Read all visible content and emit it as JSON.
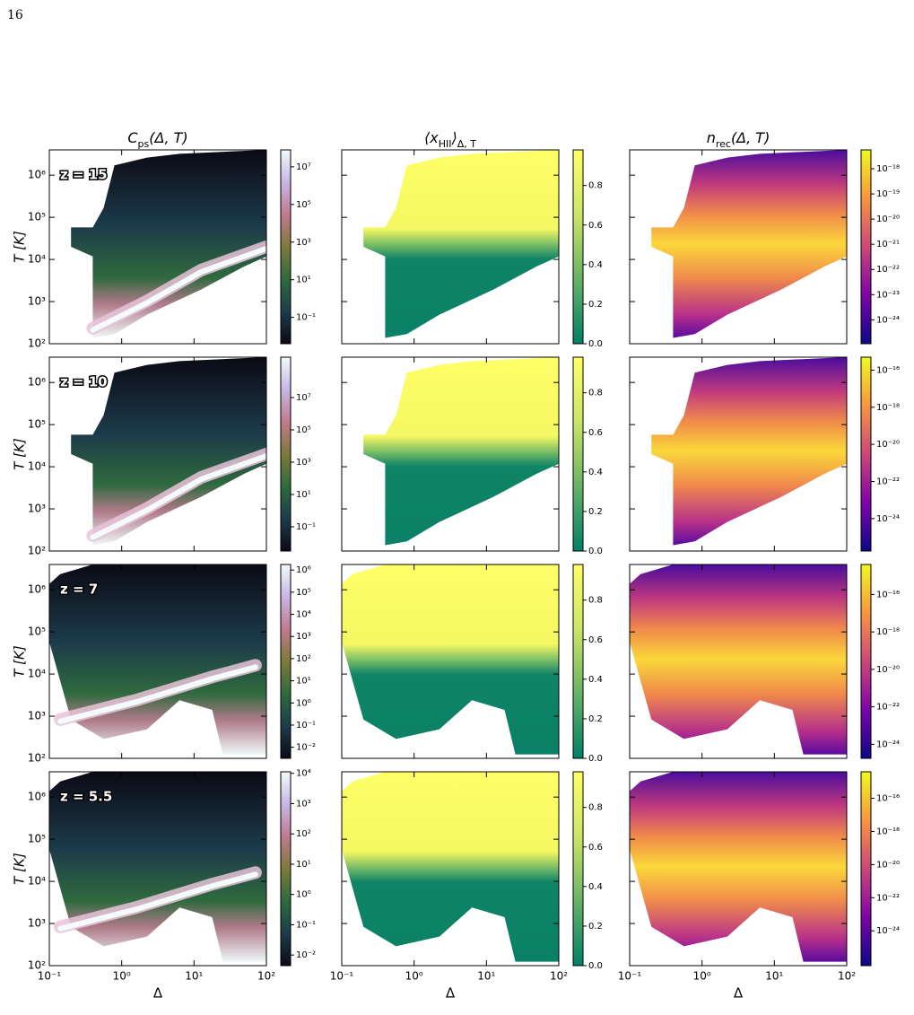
{
  "page_number": "16",
  "x_axis": {
    "label": "Δ",
    "lim": [
      -1,
      2
    ],
    "ticks": [
      {
        "value": -1,
        "label": "10⁻¹"
      },
      {
        "value": 0,
        "label": "10⁰"
      },
      {
        "value": 1,
        "label": "10¹"
      },
      {
        "value": 2,
        "label": "10²"
      }
    ]
  },
  "y_axis": {
    "label": "T [K]",
    "lim": [
      2,
      6.6
    ],
    "ticks": [
      {
        "value": 2,
        "label": "10²"
      },
      {
        "value": 3,
        "label": "10³"
      },
      {
        "value": 4,
        "label": "10⁴"
      },
      {
        "value": 5,
        "label": "10⁵"
      },
      {
        "value": 6,
        "label": "10⁶"
      }
    ]
  },
  "columns": [
    {
      "title": [
        {
          "text": "C"
        },
        {
          "text": "ps",
          "sub": true
        },
        {
          "text": "(Δ, T)"
        }
      ],
      "colors": [
        "#0b0a14",
        "#1d3c4c",
        "#2f6a3e",
        "#7d7a3a",
        "#c27a8f",
        "#c7b6e6",
        "#f2fbfb"
      ]
    },
    {
      "title": [
        {
          "text": "⟨x"
        },
        {
          "text": "HII",
          "sub": true
        },
        {
          "text": "⟩"
        },
        {
          "text": "Δ, T",
          "sub": true
        }
      ],
      "colors": [
        "#008066",
        "#66b266",
        "#ccE566",
        "#ffff66"
      ]
    },
    {
      "title": [
        {
          "text": "n"
        },
        {
          "text": "rec",
          "sub": true
        },
        {
          "text": "(Δ, T)"
        }
      ],
      "colors": [
        "#0d0887",
        "#7e03a8",
        "#cc4778",
        "#f89540",
        "#f0f921"
      ]
    }
  ],
  "rows": [
    {
      "label": "z = 15",
      "colorbars": [
        {
          "lim": [
            -2.4,
            7.9
          ],
          "ticks": [
            {
              "value": 7,
              "label": "10⁷"
            },
            {
              "value": 5,
              "label": "10⁵"
            },
            {
              "value": 3,
              "label": "10³"
            },
            {
              "value": 1,
              "label": "10¹"
            },
            {
              "value": -1,
              "label": "10⁻¹"
            }
          ]
        },
        {
          "lim": [
            0,
            0.98
          ],
          "ticks": [
            0.8,
            0.6,
            0.4,
            0.2,
            {
              "value": 0,
              "label": "0.0"
            }
          ]
        },
        {
          "lim": [
            -24.95,
            -17.25
          ],
          "ticks": [
            {
              "value": -18,
              "label": "10⁻¹⁸"
            },
            {
              "value": -19,
              "label": "10⁻¹⁹"
            },
            {
              "value": -20,
              "label": "10⁻²⁰"
            },
            {
              "value": -21,
              "label": "10⁻²¹"
            },
            {
              "value": -22,
              "label": "10⁻²²"
            },
            {
              "value": -23,
              "label": "10⁻²³"
            },
            {
              "value": -24,
              "label": "10⁻²⁴"
            }
          ]
        }
      ]
    },
    {
      "label": "z = 10",
      "colorbars": [
        {
          "lim": [
            -2.5,
            9.5
          ],
          "ticks": [
            {
              "value": 7,
              "label": "10⁷"
            },
            {
              "value": 5,
              "label": "10⁵"
            },
            {
              "value": 3,
              "label": "10³"
            },
            {
              "value": 1,
              "label": "10¹"
            },
            {
              "value": -1,
              "label": "10⁻¹"
            }
          ]
        },
        {
          "lim": [
            0,
            0.98
          ],
          "ticks": [
            0.8,
            0.6,
            0.4,
            0.2,
            {
              "value": 0,
              "label": "0.0"
            }
          ]
        },
        {
          "lim": [
            -25.75,
            -15.3
          ],
          "ticks": [
            {
              "value": -16,
              "label": "10⁻¹⁶"
            },
            {
              "value": -18,
              "label": "10⁻¹⁸"
            },
            {
              "value": -20,
              "label": "10⁻²⁰"
            },
            {
              "value": -22,
              "label": "10⁻²²"
            },
            {
              "value": -24,
              "label": "10⁻²⁴"
            }
          ]
        }
      ]
    },
    {
      "label": "z = 7",
      "colorbars": [
        {
          "lim": [
            -2.5,
            6.25
          ],
          "ticks": [
            {
              "value": 6,
              "label": "10⁶"
            },
            {
              "value": 5,
              "label": "10⁵"
            },
            {
              "value": 4,
              "label": "10⁴"
            },
            {
              "value": 3,
              "label": "10³"
            },
            {
              "value": 2,
              "label": "10²"
            },
            {
              "value": 1,
              "label": "10¹"
            },
            {
              "value": 0,
              "label": "10⁰"
            },
            {
              "value": -1,
              "label": "10⁻¹"
            },
            {
              "value": -2,
              "label": "10⁻²"
            }
          ]
        },
        {
          "lim": [
            0,
            0.98
          ],
          "ticks": [
            0.8,
            0.6,
            0.4,
            0.2,
            {
              "value": 0,
              "label": "0.0"
            }
          ]
        },
        {
          "lim": [
            -24.75,
            -14.4
          ],
          "ticks": [
            {
              "value": -16,
              "label": "10⁻¹⁶"
            },
            {
              "value": -18,
              "label": "10⁻¹⁸"
            },
            {
              "value": -20,
              "label": "10⁻²⁰"
            },
            {
              "value": -22,
              "label": "10⁻²²"
            },
            {
              "value": -24,
              "label": "10⁻²⁴"
            }
          ]
        }
      ]
    },
    {
      "label": "z = 5.5",
      "colorbars": [
        {
          "lim": [
            -2.35,
            4.05
          ],
          "ticks": [
            {
              "value": 4,
              "label": "10⁴"
            },
            {
              "value": 3,
              "label": "10³"
            },
            {
              "value": 2,
              "label": "10²"
            },
            {
              "value": 1,
              "label": "10¹"
            },
            {
              "value": 0,
              "label": "10⁰"
            },
            {
              "value": -1,
              "label": "10⁻¹"
            },
            {
              "value": -2,
              "label": "10⁻²"
            }
          ]
        },
        {
          "lim": [
            0,
            0.98
          ],
          "ticks": [
            0.8,
            0.6,
            0.4,
            0.2,
            {
              "value": 0,
              "label": "0.0"
            }
          ]
        },
        {
          "lim": [
            -26.1,
            -14.4
          ],
          "ticks": [
            {
              "value": -16,
              "label": "10⁻¹⁶"
            },
            {
              "value": -18,
              "label": "10⁻¹⁸"
            },
            {
              "value": -20,
              "label": "10⁻²⁰"
            },
            {
              "value": -22,
              "label": "10⁻²²"
            },
            {
              "value": -24,
              "label": "10⁻²⁴"
            }
          ]
        }
      ]
    }
  ]
}
